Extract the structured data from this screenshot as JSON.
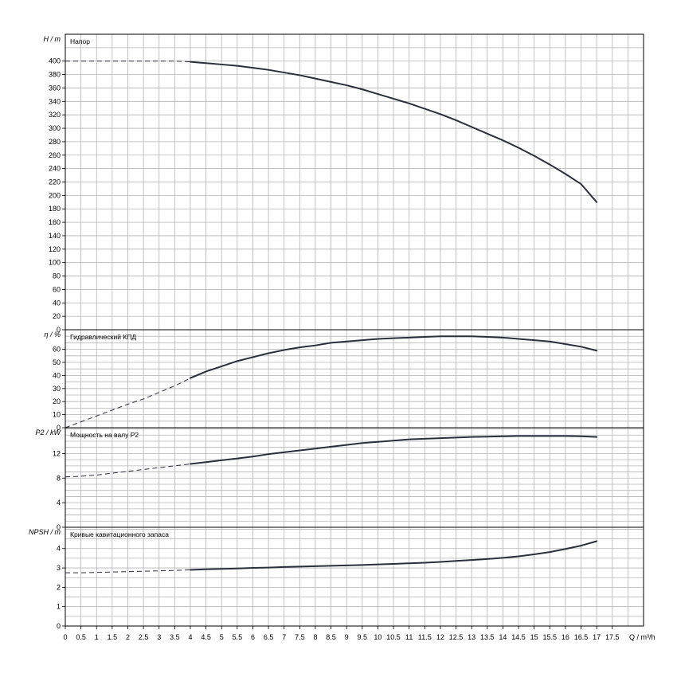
{
  "chart_data": {
    "type": "line",
    "x_axis": {
      "label": "Q / m³/h",
      "range": [
        0,
        18.5
      ],
      "tick_labels": [
        "0",
        "0.5",
        "1",
        "1.5",
        "2",
        "2.5",
        "3",
        "3.5",
        "4",
        "4.5",
        "5",
        "5.5",
        "6",
        "6.5",
        "7",
        "7.5",
        "8",
        "8.5",
        "9",
        "9.5",
        "10",
        "10.5",
        "11",
        "11.5",
        "12",
        "12.5",
        "13",
        "13.5",
        "14",
        "14.5",
        "15",
        "15.5",
        "16",
        "16.5",
        "17",
        "17.5"
      ]
    },
    "panels": [
      {
        "id": "head",
        "title": "Напор",
        "y_label": "H / m",
        "y_range": [
          0,
          440
        ],
        "y_ticks": [
          0,
          20,
          40,
          60,
          80,
          100,
          120,
          140,
          160,
          180,
          200,
          220,
          240,
          260,
          280,
          300,
          320,
          340,
          360,
          380,
          400
        ],
        "dashed_until_x": 4,
        "series": {
          "x": [
            0,
            0.5,
            1,
            1.5,
            2,
            2.5,
            3,
            3.5,
            4,
            4.5,
            5,
            5.5,
            6,
            6.5,
            7,
            7.5,
            8,
            8.5,
            9,
            9.5,
            10,
            10.5,
            11,
            11.5,
            12,
            12.5,
            13,
            13.5,
            14,
            14.5,
            15,
            15.5,
            16,
            16.5,
            17
          ],
          "y": [
            400,
            400,
            400,
            400,
            400,
            400,
            400,
            400,
            399,
            397,
            395,
            393,
            390,
            387,
            383,
            379,
            374,
            369,
            364,
            358,
            351,
            344,
            337,
            329,
            321,
            312,
            302,
            292,
            282,
            271,
            259,
            246,
            232,
            217,
            190
          ]
        }
      },
      {
        "id": "efficiency",
        "title": "Гидравлический КПД",
        "y_label": "η / %",
        "y_range": [
          0,
          75
        ],
        "y_ticks": [
          0,
          10,
          20,
          30,
          40,
          50,
          60
        ],
        "dashed_until_x": 4,
        "series": {
          "x": [
            0,
            0.5,
            1,
            1.5,
            2,
            2.5,
            3,
            3.5,
            4,
            4.5,
            5,
            5.5,
            6,
            6.5,
            7,
            7.5,
            8,
            8.5,
            9,
            9.5,
            10,
            10.5,
            11,
            11.5,
            12,
            12.5,
            13,
            13.5,
            14,
            14.5,
            15,
            15.5,
            16,
            16.5,
            17
          ],
          "y": [
            0,
            4.5,
            9,
            13.5,
            18,
            22,
            27,
            32,
            38,
            43,
            47,
            51,
            54,
            57,
            59.5,
            61.5,
            63,
            65,
            66,
            67,
            68,
            68.5,
            69,
            69.5,
            70,
            70,
            70,
            69.5,
            69,
            68,
            67,
            66,
            64,
            62,
            59
          ]
        }
      },
      {
        "id": "power",
        "title": "Мощность на валу P2",
        "y_label": "P2 / kW",
        "y_range": [
          0,
          16.2
        ],
        "y_ticks": [
          0,
          4,
          8,
          12
        ],
        "dashed_until_x": 4,
        "series": {
          "x": [
            0,
            0.5,
            1,
            1.5,
            2,
            2.5,
            3,
            3.5,
            4,
            4.5,
            5,
            5.5,
            6,
            6.5,
            7,
            7.5,
            8,
            8.5,
            9,
            9.5,
            10,
            10.5,
            11,
            11.5,
            12,
            12.5,
            13,
            13.5,
            14,
            14.5,
            15,
            15.5,
            16,
            16.5,
            17
          ],
          "y": [
            8.2,
            8.3,
            8.5,
            8.8,
            9.1,
            9.4,
            9.7,
            10,
            10.3,
            10.6,
            10.9,
            11.2,
            11.5,
            11.9,
            12.2,
            12.5,
            12.8,
            13.1,
            13.4,
            13.7,
            13.9,
            14.1,
            14.3,
            14.4,
            14.5,
            14.6,
            14.7,
            14.75,
            14.8,
            14.85,
            14.85,
            14.85,
            14.85,
            14.8,
            14.7
          ]
        }
      },
      {
        "id": "npsh",
        "title": "Кривые кавитационного запаса",
        "y_label": "NPSH / m",
        "y_range": [
          0,
          5.1
        ],
        "y_ticks": [
          0,
          1,
          2,
          3,
          4
        ],
        "dashed_until_x": 4,
        "series": {
          "x": [
            0,
            0.5,
            1,
            1.5,
            2,
            2.5,
            3,
            3.5,
            4,
            4.5,
            5,
            5.5,
            6,
            6.5,
            7,
            7.5,
            8,
            8.5,
            9,
            9.5,
            10,
            10.5,
            11,
            11.5,
            12,
            12.5,
            13,
            13.5,
            14,
            14.5,
            15,
            15.5,
            16,
            16.5,
            17
          ],
          "y": [
            2.75,
            2.75,
            2.77,
            2.79,
            2.81,
            2.83,
            2.85,
            2.87,
            2.9,
            2.93,
            2.95,
            2.97,
            3,
            3.02,
            3.05,
            3.07,
            3.09,
            3.11,
            3.13,
            3.15,
            3.18,
            3.21,
            3.24,
            3.27,
            3.31,
            3.36,
            3.41,
            3.46,
            3.52,
            3.6,
            3.7,
            3.82,
            3.98,
            4.15,
            4.38
          ]
        }
      }
    ]
  }
}
